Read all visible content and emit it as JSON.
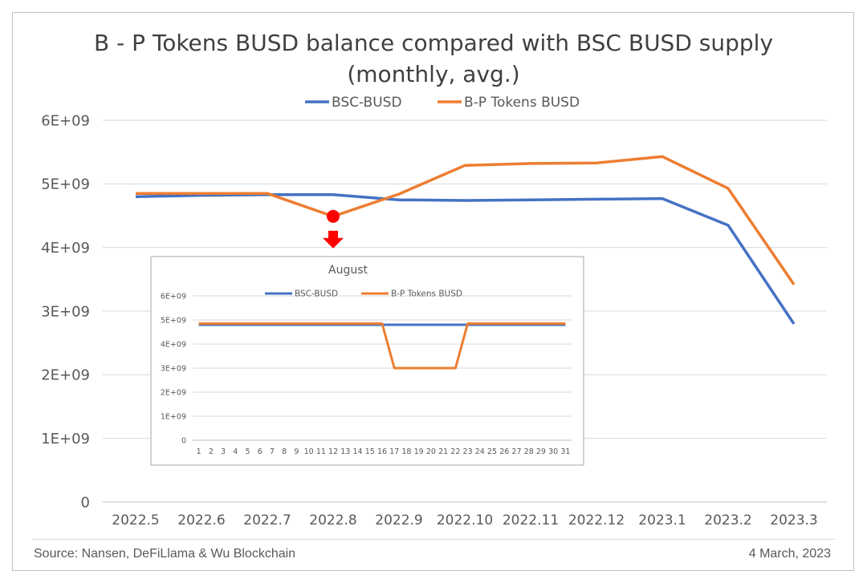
{
  "chart_data": [
    {
      "type": "line",
      "title_line1": "B - P Tokens BUSD balance compared with BSC BUSD supply",
      "title_line2": "(monthly, avg.)",
      "categories": [
        "2022.5",
        "2022.6",
        "2022.7",
        "2022.8",
        "2022.9",
        "2022.10",
        "2022.11",
        "2022.12",
        "2023.1",
        "2023.2",
        "2023.3"
      ],
      "ylim": [
        0,
        6000000000
      ],
      "yticks": [
        0,
        1000000000,
        2000000000,
        3000000000,
        4000000000,
        5000000000,
        6000000000
      ],
      "ytick_labels": [
        "0",
        "1E+09",
        "2E+09",
        "3E+09",
        "4E+09",
        "5E+09",
        "6E+09"
      ],
      "grid": true,
      "legend": "top",
      "series": [
        {
          "name": "BSC-BUSD",
          "color": "#4472c4",
          "values": [
            4800000000,
            4820000000,
            4830000000,
            4830000000,
            4750000000,
            4740000000,
            4750000000,
            4760000000,
            4770000000,
            4350000000,
            2800000000
          ]
        },
        {
          "name": "B-P Tokens BUSD",
          "color": "#ed7d31",
          "values": [
            4850000000,
            4850000000,
            4850000000,
            4490000000,
            4840000000,
            5290000000,
            5320000000,
            5330000000,
            5430000000,
            4930000000,
            3420000000
          ]
        }
      ],
      "highlight": {
        "category": "2022.8",
        "series": "B-P Tokens BUSD",
        "color": "#ff0000"
      }
    },
    {
      "type": "line",
      "title": "August",
      "categories": [
        "1",
        "2",
        "3",
        "4",
        "5",
        "6",
        "7",
        "8",
        "9",
        "10",
        "11",
        "12",
        "13",
        "14",
        "15",
        "16",
        "17",
        "18",
        "19",
        "20",
        "21",
        "22",
        "23",
        "24",
        "25",
        "26",
        "27",
        "28",
        "29",
        "30",
        "31"
      ],
      "ylim": [
        0,
        6000000000
      ],
      "yticks": [
        0,
        1000000000,
        2000000000,
        3000000000,
        4000000000,
        5000000000,
        6000000000
      ],
      "ytick_labels": [
        "0",
        "1E+09",
        "2E+09",
        "3E+09",
        "4E+09",
        "5E+09",
        "6E+09"
      ],
      "grid": true,
      "legend": "top",
      "series": [
        {
          "name": "BSC-BUSD",
          "color": "#4472c4",
          "values": [
            4800000000,
            4800000000,
            4800000000,
            4800000000,
            4800000000,
            4800000000,
            4800000000,
            4800000000,
            4800000000,
            4800000000,
            4800000000,
            4800000000,
            4800000000,
            4800000000,
            4800000000,
            4800000000,
            4800000000,
            4800000000,
            4800000000,
            4800000000,
            4800000000,
            4800000000,
            4800000000,
            4800000000,
            4800000000,
            4800000000,
            4800000000,
            4800000000,
            4800000000,
            4800000000,
            4800000000
          ]
        },
        {
          "name": "B-P Tokens BUSD",
          "color": "#ed7d31",
          "values": [
            4850000000,
            4850000000,
            4850000000,
            4850000000,
            4850000000,
            4850000000,
            4850000000,
            4850000000,
            4850000000,
            4850000000,
            4850000000,
            4850000000,
            4850000000,
            4850000000,
            4850000000,
            4850000000,
            3000000000,
            3000000000,
            3000000000,
            3000000000,
            3000000000,
            3000000000,
            4850000000,
            4850000000,
            4850000000,
            4850000000,
            4850000000,
            4850000000,
            4850000000,
            4850000000,
            4850000000
          ]
        }
      ]
    }
  ],
  "footer": {
    "source": "Source: Nansen, DeFiLlama & Wu Blockchain",
    "date": "4 March, 2023"
  }
}
